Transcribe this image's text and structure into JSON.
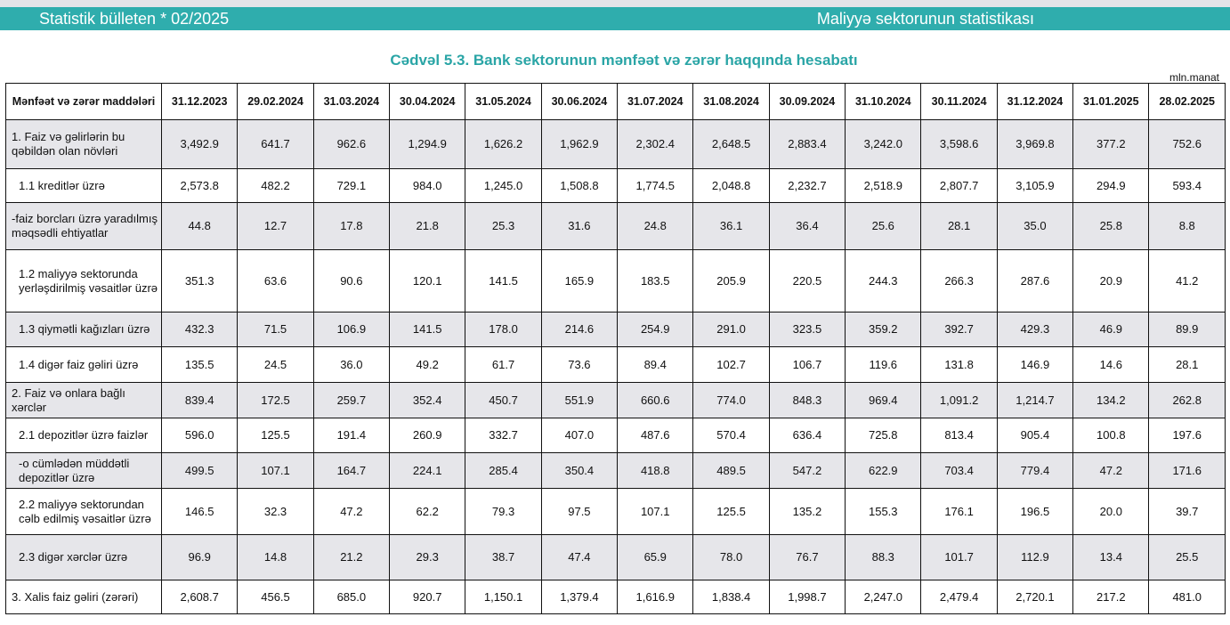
{
  "header": {
    "left": "Statistik bülleten * 02/2025",
    "right": "Maliyyə sektorunun statistikası"
  },
  "title": "Cədvəl 5.3. Bank sektorunun mənfəət və zərər haqqında hesabatı",
  "unit": "mln.manat",
  "table": {
    "first_header": "Mənfəət və zərər maddələri",
    "columns": [
      "31.12.2023",
      "29.02.2024",
      "31.03.2024",
      "30.04.2024",
      "31.05.2024",
      "30.06.2024",
      "31.07.2024",
      "31.08.2024",
      "30.09.2024",
      "31.10.2024",
      "30.11.2024",
      "31.12.2024",
      "31.01.2025",
      "28.02.2025"
    ],
    "rows": [
      {
        "label": "1. Faiz və gəlirlərin bu qəbildən olan növləri",
        "values": [
          "3,492.9",
          "641.7",
          "962.6",
          "1,294.9",
          "1,626.2",
          "1,962.9",
          "2,302.4",
          "2,648.5",
          "2,883.4",
          "3,242.0",
          "3,598.6",
          "3,969.8",
          "377.2",
          "752.6"
        ]
      },
      {
        "label": "1.1 kreditlər üzrə",
        "values": [
          "2,573.8",
          "482.2",
          "729.1",
          "984.0",
          "1,245.0",
          "1,508.8",
          "1,774.5",
          "2,048.8",
          "2,232.7",
          "2,518.9",
          "2,807.7",
          "3,105.9",
          "294.9",
          "593.4"
        ]
      },
      {
        "label": "-faiz borcları üzrə yaradılmış məqsədli ehtiyatlar",
        "values": [
          "44.8",
          "12.7",
          "17.8",
          "21.8",
          "25.3",
          "31.6",
          "24.8",
          "36.1",
          "36.4",
          "25.6",
          "28.1",
          "35.0",
          "25.8",
          "8.8"
        ]
      },
      {
        "label": "1.2 maliyyə sektorunda yerləşdirilmiş vəsaitlər üzrə",
        "values": [
          "351.3",
          "63.6",
          "90.6",
          "120.1",
          "141.5",
          "165.9",
          "183.5",
          "205.9",
          "220.5",
          "244.3",
          "266.3",
          "287.6",
          "20.9",
          "41.2"
        ]
      },
      {
        "label": "1.3 qiymətli kağızları üzrə",
        "values": [
          "432.3",
          "71.5",
          "106.9",
          "141.5",
          "178.0",
          "214.6",
          "254.9",
          "291.0",
          "323.5",
          "359.2",
          "392.7",
          "429.3",
          "46.9",
          "89.9"
        ]
      },
      {
        "label": "1.4 digər faiz gəliri üzrə",
        "values": [
          "135.5",
          "24.5",
          "36.0",
          "49.2",
          "61.7",
          "73.6",
          "89.4",
          "102.7",
          "106.7",
          "119.6",
          "131.8",
          "146.9",
          "14.6",
          "28.1"
        ]
      },
      {
        "label": "2. Faiz və onlara bağlı xərclər",
        "values": [
          "839.4",
          "172.5",
          "259.7",
          "352.4",
          "450.7",
          "551.9",
          "660.6",
          "774.0",
          "848.3",
          "969.4",
          "1,091.2",
          "1,214.7",
          "134.2",
          "262.8"
        ]
      },
      {
        "label": "2.1 depozitlər üzrə faizlər",
        "values": [
          "596.0",
          "125.5",
          "191.4",
          "260.9",
          "332.7",
          "407.0",
          "487.6",
          "570.4",
          "636.4",
          "725.8",
          "813.4",
          "905.4",
          "100.8",
          "197.6"
        ]
      },
      {
        "label": "-o cümlədən müddətli depozitlər üzrə",
        "values": [
          "499.5",
          "107.1",
          "164.7",
          "224.1",
          "285.4",
          "350.4",
          "418.8",
          "489.5",
          "547.2",
          "622.9",
          "703.4",
          "779.4",
          "47.2",
          "171.6"
        ]
      },
      {
        "label": "2.2 maliyyə sektorundan cəlb edilmiş vəsaitlər üzrə",
        "values": [
          "146.5",
          "32.3",
          "47.2",
          "62.2",
          "79.3",
          "97.5",
          "107.1",
          "125.5",
          "135.2",
          "155.3",
          "176.1",
          "196.5",
          "20.0",
          "39.7"
        ]
      },
      {
        "label": "2.3 digər xərclər üzrə",
        "values": [
          "96.9",
          "14.8",
          "21.2",
          "29.3",
          "38.7",
          "47.4",
          "65.9",
          "78.0",
          "76.7",
          "88.3",
          "101.7",
          "112.9",
          "13.4",
          "25.5"
        ]
      },
      {
        "label": "3. Xalis faiz gəliri (zərəri)",
        "values": [
          "2,608.7",
          "456.5",
          "685.0",
          "920.7",
          "1,150.1",
          "1,379.4",
          "1,616.9",
          "1,838.4",
          "1,998.7",
          "2,247.0",
          "2,479.4",
          "2,720.1",
          "217.2",
          "481.0"
        ]
      }
    ]
  }
}
